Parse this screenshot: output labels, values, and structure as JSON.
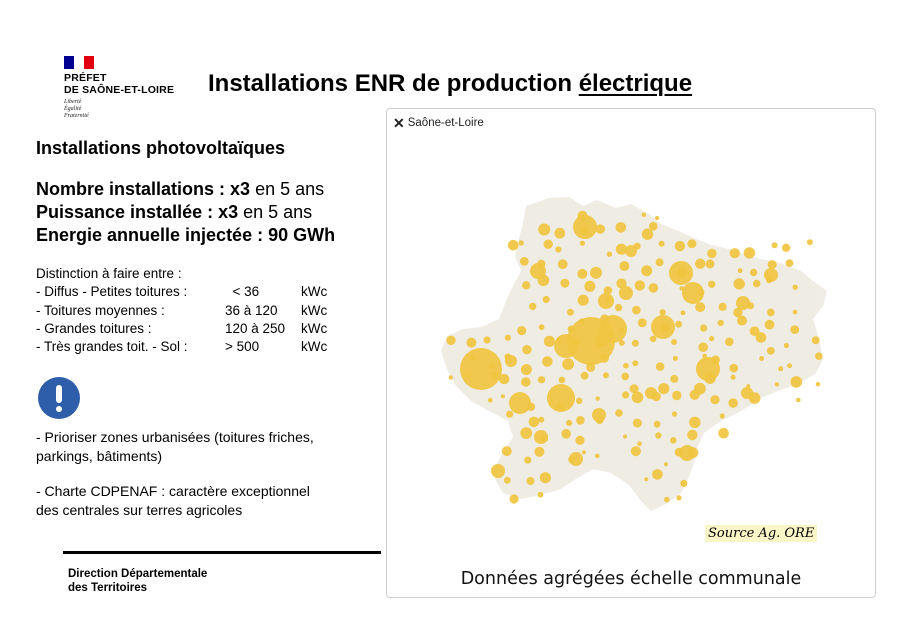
{
  "colors": {
    "flag_blue": "#000091",
    "flag_white": "#ffffff",
    "flag_red": "#e1000f",
    "alert_blue": "#2e5daa",
    "territory": "#efece4",
    "circle": "#f0c440",
    "source_highlight": "#fbf6c8"
  },
  "logo": {
    "line1": "PRÉFET",
    "line2": "DE SAÔNE-ET-LOIRE",
    "motto1": "Liberté",
    "motto2": "Égalité",
    "motto3": "Fraternité"
  },
  "title": {
    "prefix": "Installations ENR de production ",
    "underlined": "électrique"
  },
  "section": "Installations photovoltaïques",
  "stats": [
    {
      "label": "Nombre installations : ",
      "value": "x3",
      "suffix": " en 5 ans"
    },
    {
      "label": "Puissance installée : ",
      "value": "x3",
      "suffix": " en 5 ans"
    },
    {
      "label": "Energie annuelle injectée : ",
      "value": "90 GWh",
      "suffix": ""
    }
  ],
  "distinction": {
    "intro": "Distinction à faire entre :",
    "rows": [
      {
        "type": "- Diffus - Petites toitures :",
        "range": "  < 36",
        "unit": "kWc"
      },
      {
        "type": "- Toitures moyennes :",
        "range": "36 à 120",
        "unit": "kWc"
      },
      {
        "type": "- Grandes toitures :",
        "range": "120 à 250",
        "unit": "kWc"
      },
      {
        "type": "- Très grandes toit. - Sol :",
        "range": "> 500",
        "unit": "kWc"
      }
    ]
  },
  "alert_icon": "exclamation-circle-icon",
  "notes": {
    "note1_line1": "- Prioriser zones urbanisées (toitures friches,",
    "note1_line2": "parkings, bâtiments)",
    "note2_line1": "- Charte CDPENAF : caractère exceptionnel",
    "note2_line2": "des centrales sur terres agricoles"
  },
  "footer": {
    "line1": "Direction Départementale",
    "line2": "des Territoires"
  },
  "map": {
    "filter_chip": "Saône-et-Loire",
    "close_icon": "close-icon",
    "source": "Source Ag. ORE",
    "caption": "Données agrégées échelle communale"
  }
}
